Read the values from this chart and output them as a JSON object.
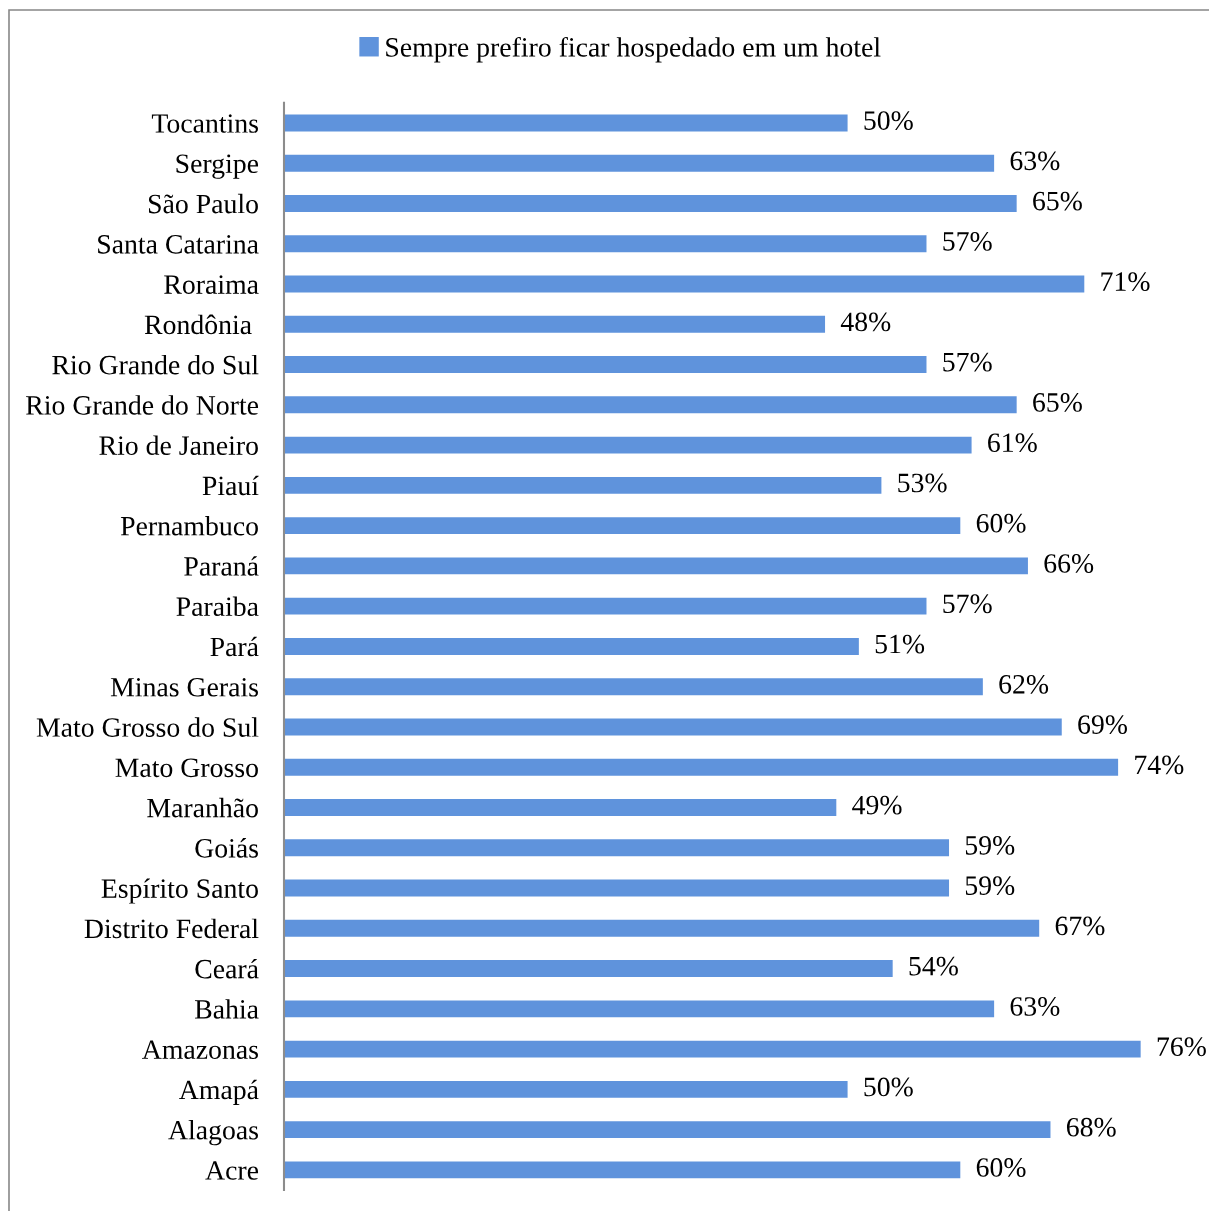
{
  "chart_data": {
    "type": "bar",
    "orientation": "horizontal",
    "categories": [
      "Tocantins",
      "Sergipe",
      "São Paulo",
      "Santa Catarina",
      "Roraima",
      "Rondônia ",
      "Rio Grande do Sul",
      "Rio Grande do Norte",
      "Rio de Janeiro",
      "Piauí",
      "Pernambuco",
      "Paraná",
      "Paraiba",
      "Pará",
      "Minas Gerais",
      "Mato Grosso do Sul",
      "Mato Grosso",
      "Maranhão",
      "Goiás",
      "Espírito Santo",
      "Distrito Federal",
      "Ceará",
      "Bahia",
      "Amazonas",
      "Amapá",
      "Alagoas",
      "Acre"
    ],
    "series": [
      {
        "name": "Sempre prefiro ficar hospedado em um hotel",
        "color": "#5f93dc",
        "values": [
          50,
          63,
          65,
          57,
          71,
          48,
          57,
          65,
          61,
          53,
          60,
          66,
          57,
          51,
          62,
          69,
          74,
          49,
          59,
          59,
          67,
          54,
          63,
          76,
          50,
          68,
          60
        ],
        "value_labels": [
          "50%",
          "63%",
          "65%",
          "57%",
          "71%",
          "48%",
          "57%",
          "65%",
          "61%",
          "53%",
          "60%",
          "66%",
          "57%",
          "51%",
          "62%",
          "69%",
          "74%",
          "49%",
          "59%",
          "59%",
          "67%",
          "54%",
          "63%",
          "76%",
          "50%",
          "68%",
          "60%"
        ]
      }
    ],
    "tick_labels": "y",
    "legend": "top"
  }
}
